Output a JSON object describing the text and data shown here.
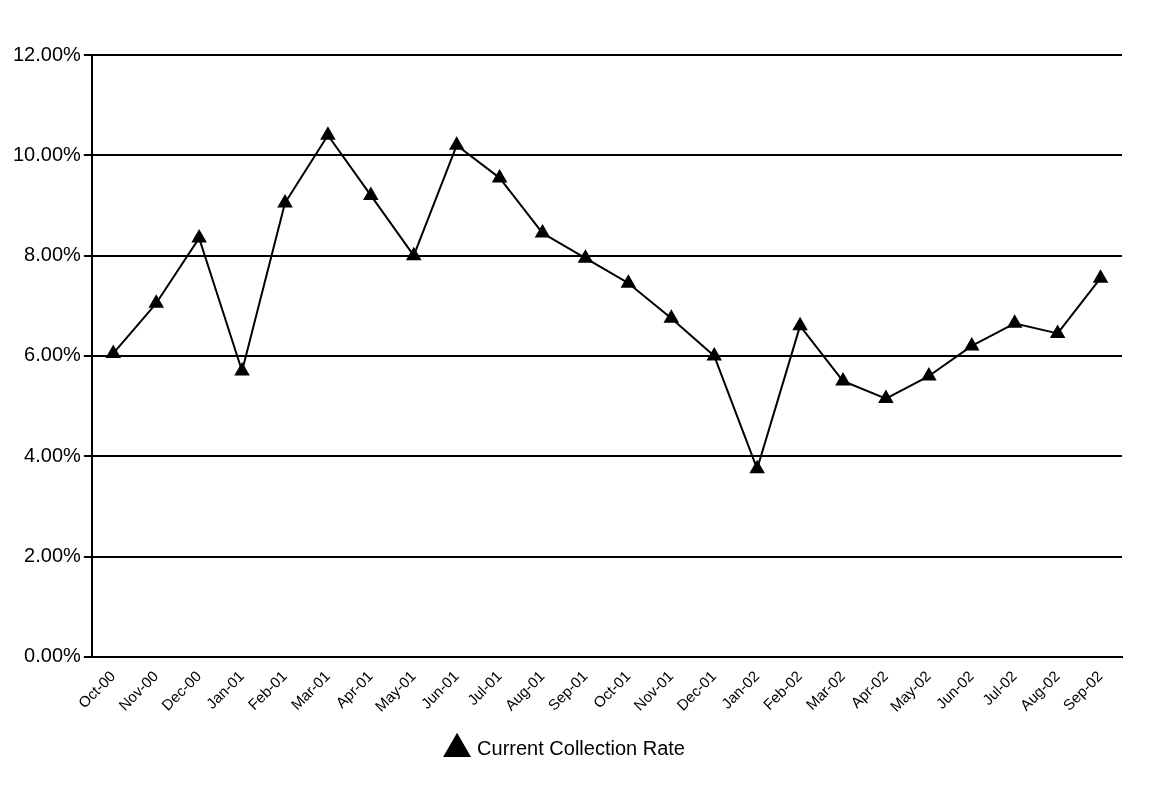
{
  "chart_data": {
    "type": "line",
    "categories": [
      "Oct-00",
      "Nov-00",
      "Dec-00",
      "Jan-01",
      "Feb-01",
      "Mar-01",
      "Apr-01",
      "May-01",
      "Jun-01",
      "Jul-01",
      "Aug-01",
      "Sep-01",
      "Oct-01",
      "Nov-01",
      "Dec-01",
      "Jan-02",
      "Feb-02",
      "Mar-02",
      "Apr-02",
      "May-02",
      "Jun-02",
      "Jul-02",
      "Aug-02",
      "Sep-02"
    ],
    "series": [
      {
        "name": "Current Collection Rate",
        "color": "#000000",
        "values": [
          6.05,
          7.05,
          8.35,
          5.7,
          9.05,
          10.4,
          9.2,
          8.0,
          10.2,
          9.55,
          8.45,
          7.95,
          7.45,
          6.75,
          6.0,
          3.75,
          6.6,
          5.5,
          5.15,
          5.6,
          6.2,
          6.65,
          6.45,
          7.55
        ]
      }
    ],
    "ylim": [
      0,
      12
    ],
    "yticks": [
      {
        "value": 0,
        "label": "0.00%"
      },
      {
        "value": 2,
        "label": "2.00%"
      },
      {
        "value": 4,
        "label": "4.00%"
      },
      {
        "value": 6,
        "label": "6.00%"
      },
      {
        "value": 8,
        "label": "8.00%"
      },
      {
        "value": 10,
        "label": "10.00%"
      },
      {
        "value": 12,
        "label": "12.00%"
      }
    ],
    "grid": "y",
    "legend": "bottom",
    "marker": "triangle",
    "line_style": "solid"
  }
}
